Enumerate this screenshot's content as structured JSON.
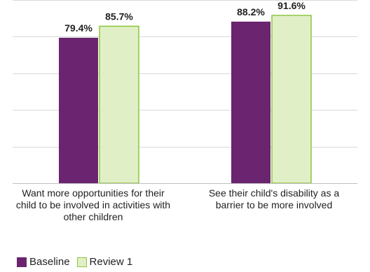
{
  "chart_data": {
    "type": "bar",
    "categories": [
      "Want more opportunities for their child to be involved in activities with other children",
      "See their child's disability as a barrier to be more involved"
    ],
    "series": [
      {
        "name": "Baseline",
        "values": [
          79.4,
          88.2
        ],
        "color": "#6b2470"
      },
      {
        "name": "Review 1",
        "values": [
          85.7,
          91.6
        ],
        "color": "#e1efc6",
        "border": "#8cc63f"
      }
    ],
    "data_labels": [
      [
        "79.4%",
        "88.2%"
      ],
      [
        "85.7%",
        "91.6%"
      ]
    ],
    "ylim": [
      0,
      100
    ],
    "grid": true,
    "legend": "bottom-left",
    "gridline_color": "#d9d9d9"
  }
}
